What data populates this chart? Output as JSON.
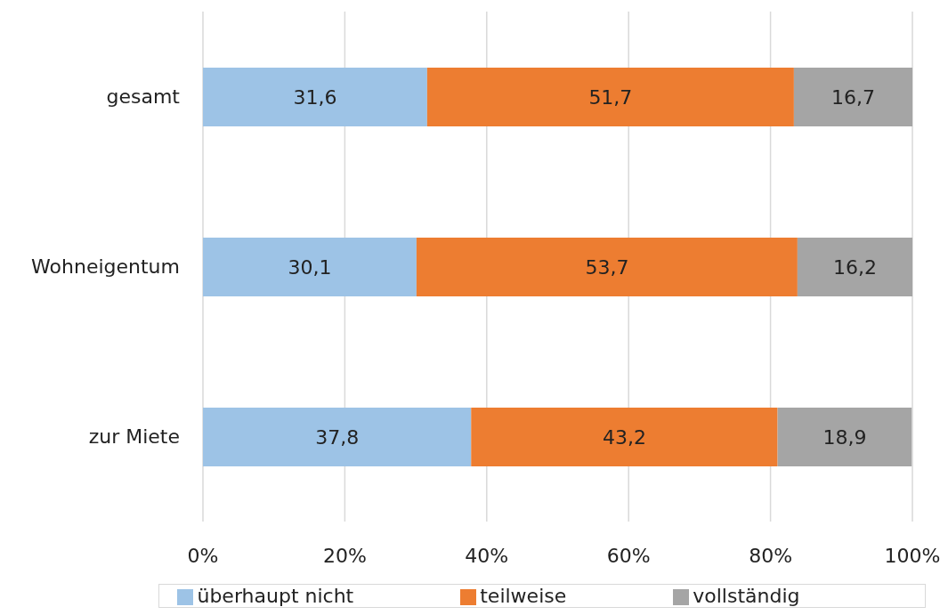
{
  "chart_data": {
    "type": "bar",
    "orientation": "horizontal",
    "stacked": true,
    "categories": [
      "gesamt",
      "Wohneigentum",
      "zur Miete"
    ],
    "series": [
      {
        "name": "überhaupt nicht",
        "color": "#9dc3e6",
        "values": [
          31.6,
          30.1,
          37.8
        ],
        "value_labels": [
          "31,6",
          "30,1",
          "37,8"
        ]
      },
      {
        "name": "teilweise",
        "color": "#ed7d31",
        "values": [
          51.7,
          53.7,
          43.2
        ],
        "value_labels": [
          "51,7",
          "53,7",
          "43,2"
        ]
      },
      {
        "name": "vollständig",
        "color": "#a5a5a5",
        "values": [
          16.7,
          16.2,
          18.9
        ],
        "value_labels": [
          "16,7",
          "16,2",
          "18,9"
        ]
      }
    ],
    "xlim": [
      0,
      100
    ],
    "xticks": [
      {
        "value": 0,
        "label": "0%"
      },
      {
        "value": 20,
        "label": "20%"
      },
      {
        "value": 40,
        "label": "40%"
      },
      {
        "value": 60,
        "label": "60%"
      },
      {
        "value": 80,
        "label": "80%"
      },
      {
        "value": 100,
        "label": "100%"
      }
    ],
    "grid": "x",
    "legend": "bottom"
  }
}
